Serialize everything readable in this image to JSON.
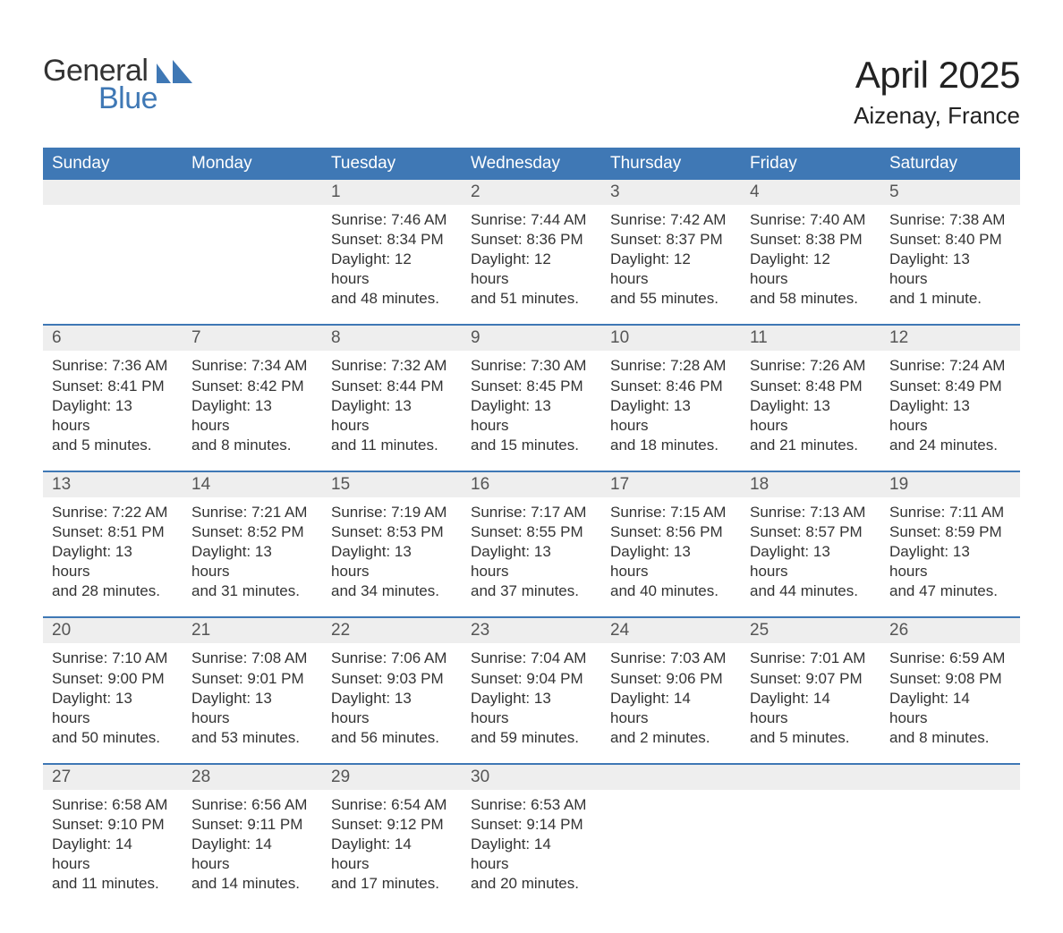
{
  "brand": {
    "general": "General",
    "blue": "Blue",
    "color_primary": "#3f78b5",
    "color_text": "#333333"
  },
  "title": "April 2025",
  "location": "Aizenay, France",
  "days_of_week": [
    "Sunday",
    "Monday",
    "Tuesday",
    "Wednesday",
    "Thursday",
    "Friday",
    "Saturday"
  ],
  "colors": {
    "header_bg": "#3f78b5",
    "header_fg": "#ffffff",
    "daybar_bg": "#eeeeee",
    "daybar_fg": "#555555",
    "cell_bg": "#ffffff",
    "cell_fg": "#333333",
    "week_border": "#3f78b5"
  },
  "typography": {
    "title_fontsize": 42,
    "location_fontsize": 26,
    "dow_fontsize": 19,
    "daynum_fontsize": 19,
    "body_fontsize": 17
  },
  "weeks": [
    {
      "cells": [
        {
          "day": "",
          "lines": []
        },
        {
          "day": "",
          "lines": []
        },
        {
          "day": "1",
          "lines": [
            "Sunrise: 7:46 AM",
            "Sunset: 8:34 PM",
            "Daylight: 12 hours",
            "and 48 minutes."
          ]
        },
        {
          "day": "2",
          "lines": [
            "Sunrise: 7:44 AM",
            "Sunset: 8:36 PM",
            "Daylight: 12 hours",
            "and 51 minutes."
          ]
        },
        {
          "day": "3",
          "lines": [
            "Sunrise: 7:42 AM",
            "Sunset: 8:37 PM",
            "Daylight: 12 hours",
            "and 55 minutes."
          ]
        },
        {
          "day": "4",
          "lines": [
            "Sunrise: 7:40 AM",
            "Sunset: 8:38 PM",
            "Daylight: 12 hours",
            "and 58 minutes."
          ]
        },
        {
          "day": "5",
          "lines": [
            "Sunrise: 7:38 AM",
            "Sunset: 8:40 PM",
            "Daylight: 13 hours",
            "and 1 minute."
          ]
        }
      ]
    },
    {
      "cells": [
        {
          "day": "6",
          "lines": [
            "Sunrise: 7:36 AM",
            "Sunset: 8:41 PM",
            "Daylight: 13 hours",
            "and 5 minutes."
          ]
        },
        {
          "day": "7",
          "lines": [
            "Sunrise: 7:34 AM",
            "Sunset: 8:42 PM",
            "Daylight: 13 hours",
            "and 8 minutes."
          ]
        },
        {
          "day": "8",
          "lines": [
            "Sunrise: 7:32 AM",
            "Sunset: 8:44 PM",
            "Daylight: 13 hours",
            "and 11 minutes."
          ]
        },
        {
          "day": "9",
          "lines": [
            "Sunrise: 7:30 AM",
            "Sunset: 8:45 PM",
            "Daylight: 13 hours",
            "and 15 minutes."
          ]
        },
        {
          "day": "10",
          "lines": [
            "Sunrise: 7:28 AM",
            "Sunset: 8:46 PM",
            "Daylight: 13 hours",
            "and 18 minutes."
          ]
        },
        {
          "day": "11",
          "lines": [
            "Sunrise: 7:26 AM",
            "Sunset: 8:48 PM",
            "Daylight: 13 hours",
            "and 21 minutes."
          ]
        },
        {
          "day": "12",
          "lines": [
            "Sunrise: 7:24 AM",
            "Sunset: 8:49 PM",
            "Daylight: 13 hours",
            "and 24 minutes."
          ]
        }
      ]
    },
    {
      "cells": [
        {
          "day": "13",
          "lines": [
            "Sunrise: 7:22 AM",
            "Sunset: 8:51 PM",
            "Daylight: 13 hours",
            "and 28 minutes."
          ]
        },
        {
          "day": "14",
          "lines": [
            "Sunrise: 7:21 AM",
            "Sunset: 8:52 PM",
            "Daylight: 13 hours",
            "and 31 minutes."
          ]
        },
        {
          "day": "15",
          "lines": [
            "Sunrise: 7:19 AM",
            "Sunset: 8:53 PM",
            "Daylight: 13 hours",
            "and 34 minutes."
          ]
        },
        {
          "day": "16",
          "lines": [
            "Sunrise: 7:17 AM",
            "Sunset: 8:55 PM",
            "Daylight: 13 hours",
            "and 37 minutes."
          ]
        },
        {
          "day": "17",
          "lines": [
            "Sunrise: 7:15 AM",
            "Sunset: 8:56 PM",
            "Daylight: 13 hours",
            "and 40 minutes."
          ]
        },
        {
          "day": "18",
          "lines": [
            "Sunrise: 7:13 AM",
            "Sunset: 8:57 PM",
            "Daylight: 13 hours",
            "and 44 minutes."
          ]
        },
        {
          "day": "19",
          "lines": [
            "Sunrise: 7:11 AM",
            "Sunset: 8:59 PM",
            "Daylight: 13 hours",
            "and 47 minutes."
          ]
        }
      ]
    },
    {
      "cells": [
        {
          "day": "20",
          "lines": [
            "Sunrise: 7:10 AM",
            "Sunset: 9:00 PM",
            "Daylight: 13 hours",
            "and 50 minutes."
          ]
        },
        {
          "day": "21",
          "lines": [
            "Sunrise: 7:08 AM",
            "Sunset: 9:01 PM",
            "Daylight: 13 hours",
            "and 53 minutes."
          ]
        },
        {
          "day": "22",
          "lines": [
            "Sunrise: 7:06 AM",
            "Sunset: 9:03 PM",
            "Daylight: 13 hours",
            "and 56 minutes."
          ]
        },
        {
          "day": "23",
          "lines": [
            "Sunrise: 7:04 AM",
            "Sunset: 9:04 PM",
            "Daylight: 13 hours",
            "and 59 minutes."
          ]
        },
        {
          "day": "24",
          "lines": [
            "Sunrise: 7:03 AM",
            "Sunset: 9:06 PM",
            "Daylight: 14 hours",
            "and 2 minutes."
          ]
        },
        {
          "day": "25",
          "lines": [
            "Sunrise: 7:01 AM",
            "Sunset: 9:07 PM",
            "Daylight: 14 hours",
            "and 5 minutes."
          ]
        },
        {
          "day": "26",
          "lines": [
            "Sunrise: 6:59 AM",
            "Sunset: 9:08 PM",
            "Daylight: 14 hours",
            "and 8 minutes."
          ]
        }
      ]
    },
    {
      "cells": [
        {
          "day": "27",
          "lines": [
            "Sunrise: 6:58 AM",
            "Sunset: 9:10 PM",
            "Daylight: 14 hours",
            "and 11 minutes."
          ]
        },
        {
          "day": "28",
          "lines": [
            "Sunrise: 6:56 AM",
            "Sunset: 9:11 PM",
            "Daylight: 14 hours",
            "and 14 minutes."
          ]
        },
        {
          "day": "29",
          "lines": [
            "Sunrise: 6:54 AM",
            "Sunset: 9:12 PM",
            "Daylight: 14 hours",
            "and 17 minutes."
          ]
        },
        {
          "day": "30",
          "lines": [
            "Sunrise: 6:53 AM",
            "Sunset: 9:14 PM",
            "Daylight: 14 hours",
            "and 20 minutes."
          ]
        },
        {
          "day": "",
          "lines": []
        },
        {
          "day": "",
          "lines": []
        },
        {
          "day": "",
          "lines": []
        }
      ]
    }
  ]
}
